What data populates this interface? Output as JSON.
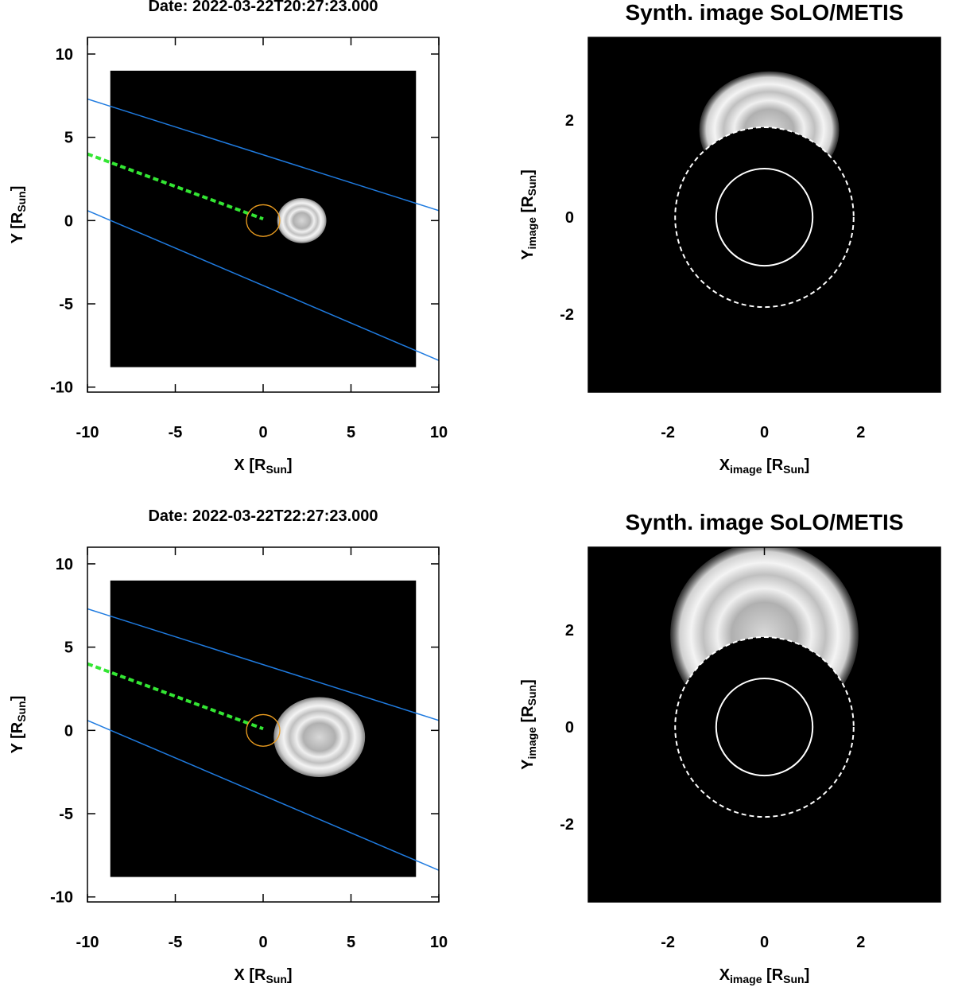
{
  "chart_data": [
    {
      "type": "trajectory",
      "title": "Date: 2022-03-22T20:27:23.000",
      "xlabel": [
        [
          "X",
          false
        ],
        [
          " [R",
          false
        ],
        [
          "Sun",
          true
        ],
        [
          "]",
          false
        ]
      ],
      "ylabel": [
        [
          "Y",
          false
        ],
        [
          " [R",
          false
        ],
        [
          "Sun",
          true
        ],
        [
          "]",
          false
        ]
      ],
      "xlim": [
        -10,
        10
      ],
      "ylim": [
        -10.3,
        11.0
      ],
      "xticks": [
        -10,
        -5,
        0,
        5,
        10
      ],
      "yticks": [
        -10,
        -5,
        0,
        5,
        10
      ],
      "image_extent": [
        -8.7,
        8.7,
        -8.8,
        9.0
      ],
      "lines": [
        {
          "color": "#1f7be0",
          "dashed": false,
          "x": [
            -10,
            10
          ],
          "y": [
            7.3,
            0.6
          ]
        },
        {
          "color": "#1f7be0",
          "dashed": false,
          "x": [
            -10,
            10
          ],
          "y": [
            0.6,
            -8.4
          ]
        },
        {
          "color": "#33e633",
          "dashed": true,
          "x": [
            -10,
            0
          ],
          "y": [
            4.0,
            0.1
          ]
        }
      ],
      "sun": {
        "x": 0,
        "y": 0,
        "r": 0.95,
        "color": "#f0a020"
      },
      "cme": {
        "x": 2.2,
        "y": 0.0,
        "rx": 1.4,
        "ry": 1.35
      }
    },
    {
      "type": "coronagraph",
      "title": "Synth. image SoLO/METIS",
      "xlabel": [
        [
          "X",
          false
        ],
        [
          "image",
          true
        ],
        [
          " [R",
          false
        ],
        [
          "Sun",
          true
        ],
        [
          "]",
          false
        ]
      ],
      "ylabel": [
        [
          "Y",
          false
        ],
        [
          "image",
          true
        ],
        [
          " [R",
          false
        ],
        [
          "Sun",
          true
        ],
        [
          "]",
          false
        ]
      ],
      "xlim": [
        -3.65,
        3.65
      ],
      "ylim": [
        -3.6,
        3.7
      ],
      "xticks": [
        -2,
        0,
        2
      ],
      "yticks": [
        -2,
        0,
        2
      ],
      "occulter_r": 1.85,
      "sun_r": 1.0,
      "cme": {
        "x": 0.1,
        "y": 1.8,
        "rx": 1.45,
        "ry": 1.2
      }
    },
    {
      "type": "trajectory",
      "title": "Date: 2022-03-22T22:27:23.000",
      "xlabel": [
        [
          "X",
          false
        ],
        [
          " [R",
          false
        ],
        [
          "Sun",
          true
        ],
        [
          "]",
          false
        ]
      ],
      "ylabel": [
        [
          "Y",
          false
        ],
        [
          " [R",
          false
        ],
        [
          "Sun",
          true
        ],
        [
          "]",
          false
        ]
      ],
      "xlim": [
        -10,
        10
      ],
      "ylim": [
        -10.3,
        11.0
      ],
      "xticks": [
        -10,
        -5,
        0,
        5,
        10
      ],
      "yticks": [
        -10,
        -5,
        0,
        5,
        10
      ],
      "image_extent": [
        -8.7,
        8.7,
        -8.8,
        9.0
      ],
      "lines": [
        {
          "color": "#1f7be0",
          "dashed": false,
          "x": [
            -10,
            10
          ],
          "y": [
            7.3,
            0.6
          ]
        },
        {
          "color": "#1f7be0",
          "dashed": false,
          "x": [
            -10,
            10
          ],
          "y": [
            0.6,
            -8.4
          ]
        },
        {
          "color": "#33e633",
          "dashed": true,
          "x": [
            -10,
            0
          ],
          "y": [
            4.0,
            0.1
          ]
        }
      ],
      "sun": {
        "x": 0,
        "y": 0,
        "r": 0.95,
        "color": "#f0a020"
      },
      "cme": {
        "x": 3.2,
        "y": -0.4,
        "rx": 2.6,
        "ry": 2.4
      }
    },
    {
      "type": "coronagraph",
      "title": "Synth. image SoLO/METIS",
      "xlabel": [
        [
          "X",
          false
        ],
        [
          "image",
          true
        ],
        [
          " [R",
          false
        ],
        [
          "Sun",
          true
        ],
        [
          "]",
          false
        ]
      ],
      "ylabel": [
        [
          "Y",
          false
        ],
        [
          "image",
          true
        ],
        [
          " [R",
          false
        ],
        [
          "Sun",
          true
        ],
        [
          "]",
          false
        ]
      ],
      "xlim": [
        -3.65,
        3.65
      ],
      "ylim": [
        -3.6,
        3.7
      ],
      "xticks": [
        -2,
        0,
        2
      ],
      "yticks": [
        -2,
        0,
        2
      ],
      "occulter_r": 1.85,
      "sun_r": 1.0,
      "cme": {
        "x": 0.0,
        "y": 1.9,
        "rx": 1.95,
        "ry": 1.9
      }
    }
  ]
}
